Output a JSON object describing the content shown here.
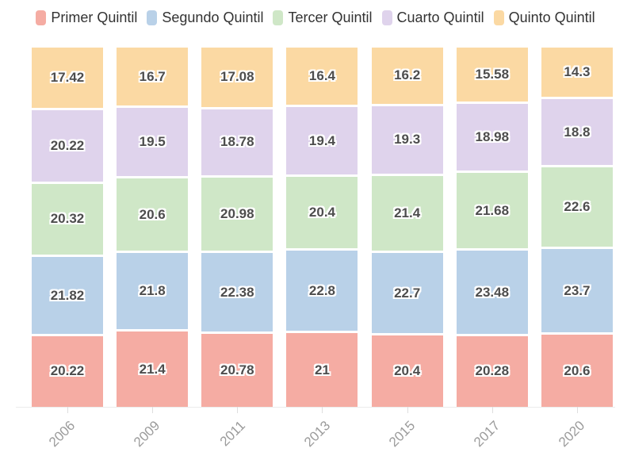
{
  "chart_data": {
    "type": "bar",
    "stacked": true,
    "percent": true,
    "title": "",
    "xlabel": "",
    "ylabel": "",
    "ylim": [
      0,
      100
    ],
    "grid": false,
    "legend_position": "top",
    "value_labels": true,
    "categories": [
      "2006",
      "2009",
      "2011",
      "2013",
      "2015",
      "2017",
      "2020"
    ],
    "series": [
      {
        "name": "Primer Quintil",
        "color": "#F5ACA3",
        "values": [
          20.22,
          21.4,
          20.78,
          21,
          20.4,
          20.28,
          20.6
        ]
      },
      {
        "name": "Segundo Quintil",
        "color": "#B9D1E8",
        "values": [
          21.82,
          21.8,
          22.38,
          22.8,
          22.7,
          23.48,
          23.7
        ]
      },
      {
        "name": "Tercer Quintil",
        "color": "#CFE7C7",
        "values": [
          20.32,
          20.6,
          20.98,
          20.4,
          21.4,
          21.68,
          22.6
        ]
      },
      {
        "name": "Cuarto Quintil",
        "color": "#DFD3EC",
        "values": [
          20.22,
          19.5,
          18.78,
          19.4,
          19.3,
          18.98,
          18.8
        ]
      },
      {
        "name": "Quinto Quintil",
        "color": "#FBD9A3",
        "values": [
          17.42,
          16.7,
          17.08,
          16.4,
          16.2,
          15.58,
          14.3
        ]
      }
    ],
    "colors": {
      "value_label_text": "#4d4d4d",
      "axis_label_text": "#9b9b9b",
      "legend_text": "#333333",
      "axis_line": "#ececec"
    }
  }
}
